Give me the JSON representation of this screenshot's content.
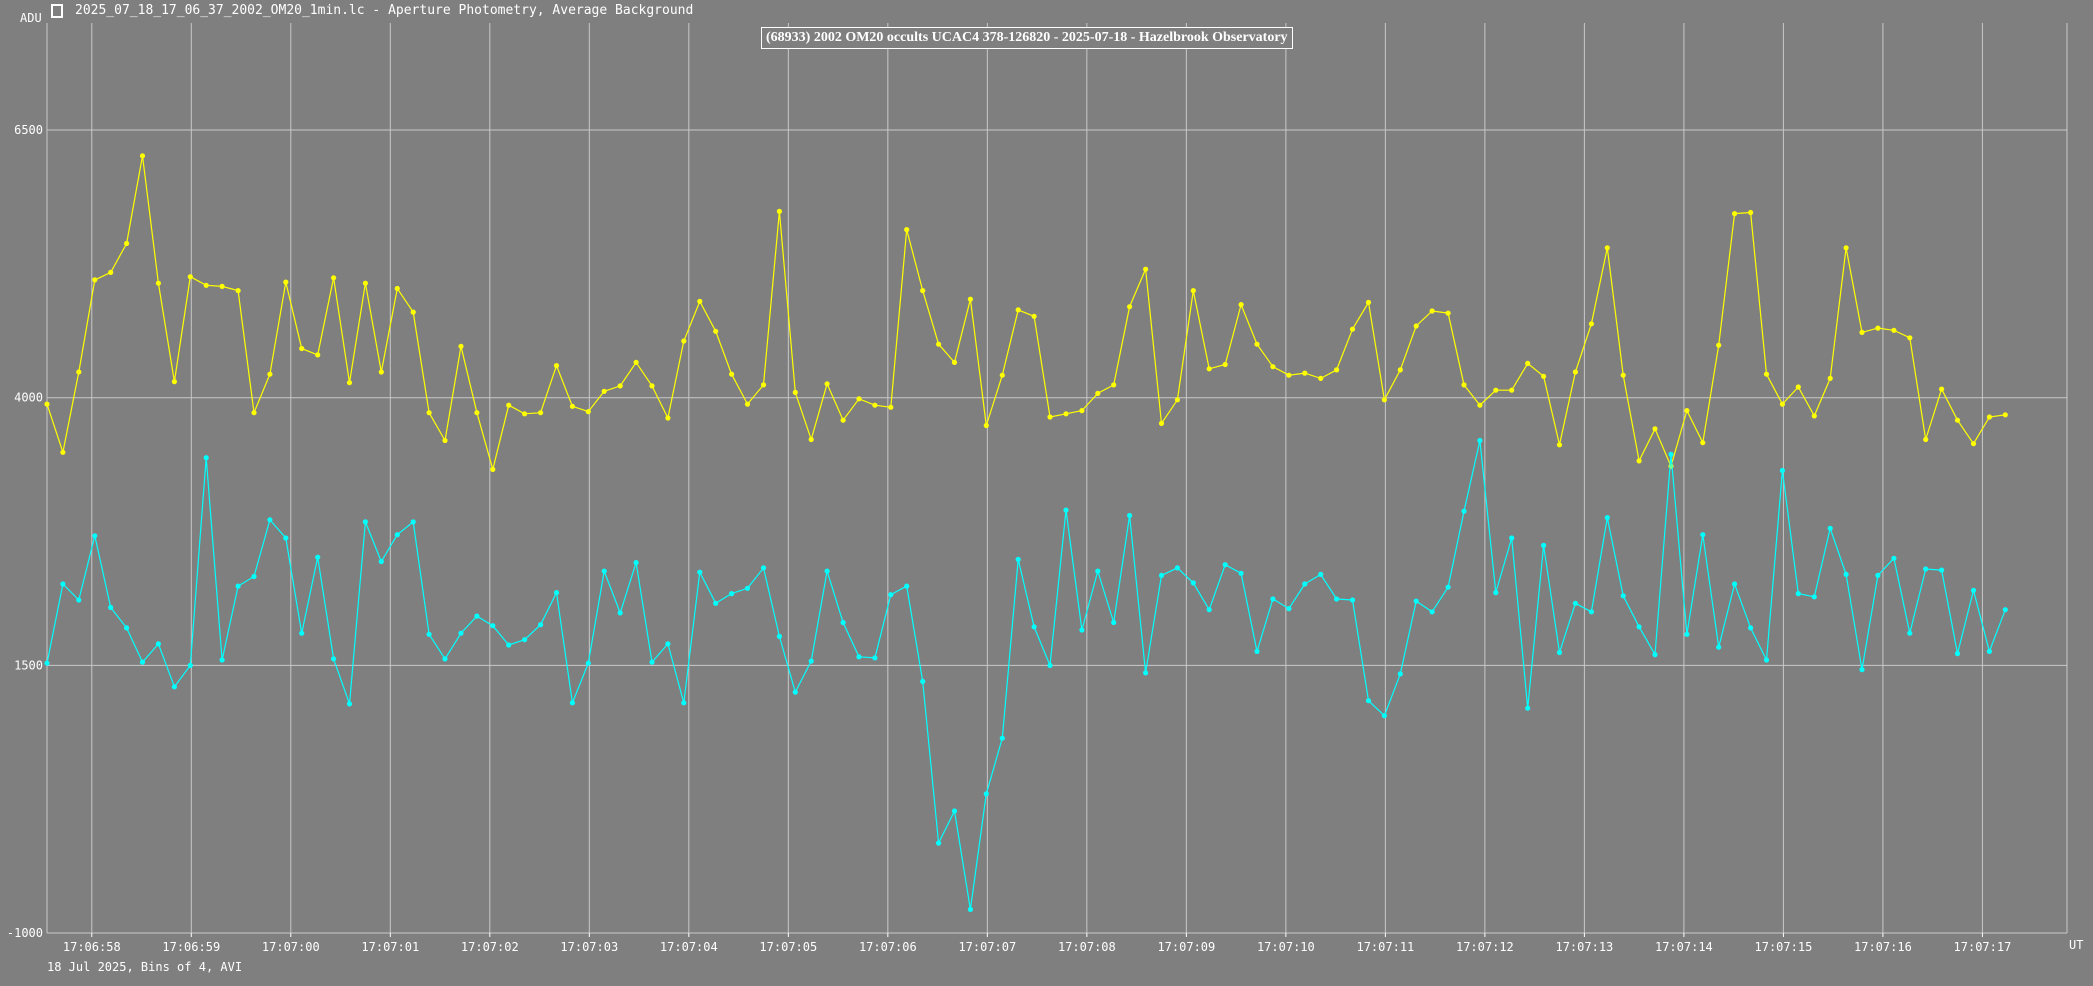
{
  "window": {
    "title": "2025_07_18_17_06_37_2002_OM20_1min.lc - Aperture Photometry, Average Background",
    "icon": "chart-app-icon"
  },
  "footer": {
    "text": "18 Jul 2025, Bins of 4, AVI"
  },
  "chart_data": {
    "type": "line",
    "title": "(68933) 2002 OM20 occults UCAC4 378-126820 - 2025-07-18 - Hazelbrook Observatory",
    "ylabel": "ADU",
    "xlabel": "UT",
    "ylim": [
      -1000,
      7500
    ],
    "y_ticks": [
      -1000,
      1500,
      4000,
      6500
    ],
    "x_unit": "seconds since 17:06:57.5",
    "x_ticks": [
      {
        "x": 0.45,
        "label": "17:06:58"
      },
      {
        "x": 1.45,
        "label": "17:06:59"
      },
      {
        "x": 2.45,
        "label": "17:07:00"
      },
      {
        "x": 3.45,
        "label": "17:07:01"
      },
      {
        "x": 4.45,
        "label": "17:07:02"
      },
      {
        "x": 5.45,
        "label": "17:07:03"
      },
      {
        "x": 6.45,
        "label": "17:07:04"
      },
      {
        "x": 7.45,
        "label": "17:07:05"
      },
      {
        "x": 8.45,
        "label": "17:07:06"
      },
      {
        "x": 9.45,
        "label": "17:07:07"
      },
      {
        "x": 10.45,
        "label": "17:07:08"
      },
      {
        "x": 11.45,
        "label": "17:07:09"
      },
      {
        "x": 12.45,
        "label": "17:07:10"
      },
      {
        "x": 13.45,
        "label": "17:07:11"
      },
      {
        "x": 14.45,
        "label": "17:07:12"
      },
      {
        "x": 15.45,
        "label": "17:07:13"
      },
      {
        "x": 16.45,
        "label": "17:07:14"
      },
      {
        "x": 17.45,
        "label": "17:07:15"
      },
      {
        "x": 18.45,
        "label": "17:07:16"
      },
      {
        "x": 19.45,
        "label": "17:07:17"
      }
    ],
    "x_start": 0.0,
    "x_step": 0.16,
    "xlim": [
      0.0,
      20.3
    ],
    "series": [
      {
        "color": "#ffff00",
        "values": [
          3940,
          3490,
          4240,
          5100,
          5170,
          5440,
          6260,
          5070,
          4150,
          5130,
          5050,
          5040,
          5000,
          3860,
          4220,
          5080,
          4460,
          4400,
          5120,
          4140,
          5070,
          4240,
          5020,
          4800,
          3860,
          3600,
          4480,
          3860,
          3330,
          3930,
          3850,
          3860,
          4300,
          3920,
          3870,
          4060,
          4110,
          4330,
          4110,
          3810,
          4530,
          4900,
          4620,
          4220,
          3940,
          4120,
          5740,
          4050,
          3610,
          4130,
          3790,
          3990,
          3930,
          3910,
          5570,
          5000,
          4500,
          4330,
          4920,
          3740,
          4210,
          4820,
          4760,
          3820,
          3850,
          3880,
          4040,
          4120,
          4850,
          5200,
          3760,
          3980,
          5000,
          4270,
          4310,
          4870,
          4500,
          4290,
          4210,
          4230,
          4180,
          4260,
          4640,
          4890,
          3980,
          4260,
          4670,
          4810,
          4790,
          4120,
          3930,
          4070,
          4070,
          4320,
          4200,
          3560,
          4240,
          4690,
          5400,
          4210,
          3410,
          3710,
          3360,
          3880,
          3580,
          4490,
          5720,
          5730,
          4220,
          3940,
          4100,
          3830,
          4180,
          5400,
          4610,
          4650,
          4630,
          4560,
          3610,
          4080,
          3790,
          3570,
          3820,
          3840
        ]
      },
      {
        "color": "#00ffff",
        "values": [
          1520,
          2260,
          2110,
          2710,
          2040,
          1850,
          1530,
          1700,
          1300,
          1500,
          3440,
          1550,
          2240,
          2330,
          2860,
          2690,
          1800,
          2510,
          1560,
          1140,
          2840,
          2470,
          2720,
          2840,
          1790,
          1560,
          1800,
          1960,
          1870,
          1690,
          1740,
          1880,
          2180,
          1150,
          1520,
          2380,
          1990,
          2460,
          1530,
          1700,
          1150,
          2370,
          2080,
          2170,
          2220,
          2410,
          1770,
          1250,
          1540,
          2380,
          1900,
          1580,
          1570,
          2160,
          2240,
          1350,
          -160,
          140,
          -780,
          300,
          820,
          2490,
          1860,
          1500,
          2950,
          1830,
          2380,
          1900,
          2900,
          1430,
          2340,
          2410,
          2270,
          2020,
          2440,
          2360,
          1630,
          2120,
          2030,
          2260,
          2350,
          2120,
          2110,
          1170,
          1030,
          1420,
          2100,
          2000,
          2230,
          2940,
          3600,
          2180,
          2690,
          1100,
          2620,
          1620,
          2080,
          2000,
          2880,
          2150,
          1860,
          1600,
          3470,
          1790,
          2720,
          1670,
          2260,
          1850,
          1550,
          3320,
          2170,
          2140,
          2780,
          2350,
          1460,
          2340,
          2500,
          1800,
          2400,
          2390,
          1610,
          2200,
          1630,
          2020
        ]
      }
    ]
  }
}
